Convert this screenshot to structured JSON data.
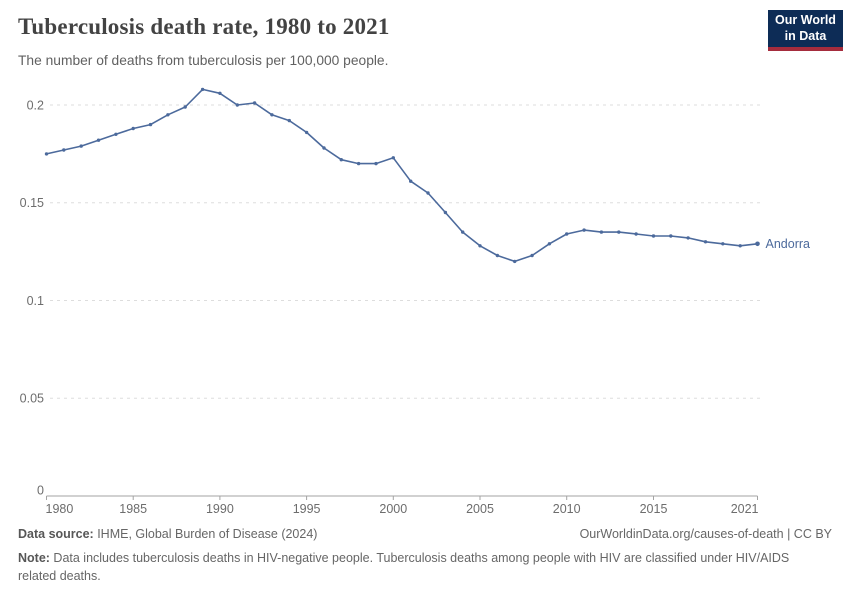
{
  "header": {
    "title": "Tuberculosis death rate, 1980 to 2021",
    "subtitle": "The number of deaths from tuberculosis per 100,000 people.",
    "logo": {
      "line1": "Our World",
      "line2": "in Data",
      "bg_color": "#0d2c56",
      "accent_color": "#a52c3d"
    }
  },
  "chart_data": {
    "type": "line",
    "title": "Tuberculosis death rate, 1980 to 2021",
    "xlabel": "",
    "ylabel": "",
    "xlim": [
      1980,
      2021
    ],
    "ylim": [
      0,
      0.21
    ],
    "grid": "horizontal-dashed",
    "legend_position": "end-of-line",
    "x": [
      1980,
      1981,
      1982,
      1983,
      1984,
      1985,
      1986,
      1987,
      1988,
      1989,
      1990,
      1991,
      1992,
      1993,
      1994,
      1995,
      1996,
      1997,
      1998,
      1999,
      2000,
      2001,
      2002,
      2003,
      2004,
      2005,
      2006,
      2007,
      2008,
      2009,
      2010,
      2011,
      2012,
      2013,
      2014,
      2015,
      2016,
      2017,
      2018,
      2019,
      2020,
      2021
    ],
    "xticks": [
      1980,
      1985,
      1990,
      1995,
      2000,
      2005,
      2010,
      2015,
      2021
    ],
    "yticks": [
      0,
      0.05,
      0.1,
      0.15,
      0.2
    ],
    "ytick_labels": [
      "0",
      "0.05",
      "0.1",
      "0.15",
      "0.2"
    ],
    "series": [
      {
        "name": "Andorra",
        "color": "#4c6a9c",
        "values": [
          0.175,
          0.177,
          0.179,
          0.182,
          0.185,
          0.188,
          0.19,
          0.195,
          0.199,
          0.208,
          0.206,
          0.2,
          0.201,
          0.195,
          0.192,
          0.186,
          0.178,
          0.172,
          0.17,
          0.17,
          0.173,
          0.161,
          0.155,
          0.145,
          0.135,
          0.128,
          0.123,
          0.12,
          0.123,
          0.129,
          0.134,
          0.136,
          0.135,
          0.135,
          0.134,
          0.133,
          0.133,
          0.132,
          0.13,
          0.129,
          0.128,
          0.129
        ]
      }
    ]
  },
  "footer": {
    "source_label": "Data source:",
    "source_text": " IHME, Global Burden of Disease (2024)",
    "link_text": "OurWorldinData.org/causes-of-death | CC BY",
    "note_label": "Note:",
    "note_text": " Data includes tuberculosis deaths in HIV-negative people. Tuberculosis deaths among people with HIV are classified under HIV/AIDS related deaths."
  }
}
